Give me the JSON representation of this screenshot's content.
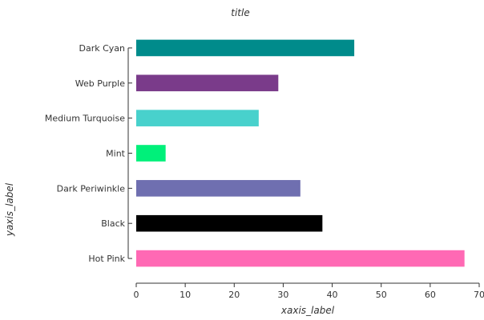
{
  "chart_data": {
    "type": "bar",
    "orientation": "horizontal",
    "title": "title",
    "xlabel": "xaxis_label",
    "ylabel": "yaxis_label",
    "xlim": [
      0,
      70
    ],
    "xticks": [
      0,
      10,
      20,
      30,
      40,
      50,
      60,
      70
    ],
    "grid": false,
    "categories": [
      "Hot Pink",
      "Black",
      "Dark Periwinkle",
      "Mint",
      "Medium Turquoise",
      "Web Purple",
      "Dark Cyan"
    ],
    "values": [
      67,
      38,
      33.5,
      6,
      25,
      29,
      44.5
    ],
    "colors": [
      "#ff69b4",
      "#000000",
      "#6f6fb0",
      "#00f07a",
      "#48d1cc",
      "#7a3b8a",
      "#008b8b"
    ]
  }
}
